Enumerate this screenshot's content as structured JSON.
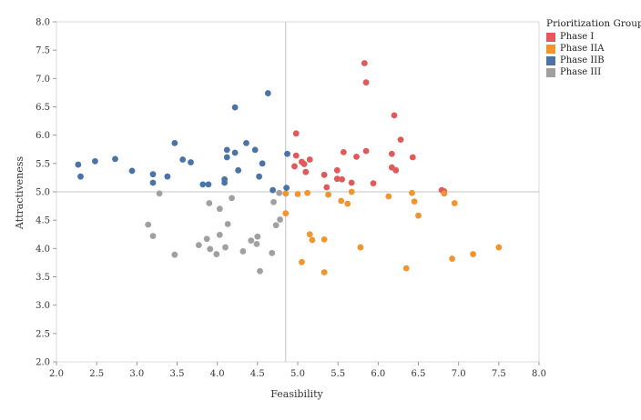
{
  "chart_data": {
    "type": "scatter",
    "title": "",
    "xlabel": "Feasibility",
    "ylabel": "Attractiveness",
    "xlim": [
      2.0,
      8.0
    ],
    "ylim": [
      2.0,
      8.0
    ],
    "xticks": [
      "2.0",
      "2.5",
      "3.0",
      "3.5",
      "4.0",
      "4.5",
      "5.0",
      "5.5",
      "6.0",
      "6.5",
      "7.0",
      "7.5",
      "8.0"
    ],
    "yticks": [
      "2.0",
      "2.5",
      "3.0",
      "3.5",
      "4.0",
      "4.5",
      "5.0",
      "5.5",
      "6.0",
      "6.5",
      "7.0",
      "7.5",
      "8.0"
    ],
    "reference_lines": {
      "x": 4.85,
      "y": 5.0
    },
    "grid": false,
    "legend": {
      "title": "Prioritization Group",
      "position": "top-right"
    },
    "series": [
      {
        "name": "Phase I",
        "color": "#e05a5b",
        "points": [
          [
            5.83,
            7.27
          ],
          [
            5.85,
            6.93
          ],
          [
            6.2,
            6.35
          ],
          [
            4.98,
            6.03
          ],
          [
            6.28,
            5.92
          ],
          [
            5.85,
            5.72
          ],
          [
            5.57,
            5.7
          ],
          [
            4.98,
            5.64
          ],
          [
            6.17,
            5.67
          ],
          [
            5.73,
            5.62
          ],
          [
            6.43,
            5.61
          ],
          [
            5.15,
            5.57
          ],
          [
            5.05,
            5.53
          ],
          [
            5.08,
            5.49
          ],
          [
            4.96,
            5.45
          ],
          [
            6.17,
            5.43
          ],
          [
            6.22,
            5.38
          ],
          [
            5.49,
            5.38
          ],
          [
            5.1,
            5.35
          ],
          [
            5.33,
            5.3
          ],
          [
            5.49,
            5.23
          ],
          [
            5.55,
            5.22
          ],
          [
            5.67,
            5.16
          ],
          [
            5.94,
            5.15
          ],
          [
            5.36,
            5.08
          ],
          [
            6.79,
            5.03
          ],
          [
            6.82,
            5.01
          ]
        ]
      },
      {
        "name": "Phase IIA",
        "color": "#f2952f",
        "points": [
          [
            4.85,
            4.97
          ],
          [
            5.0,
            4.96
          ],
          [
            5.12,
            4.98
          ],
          [
            5.38,
            4.95
          ],
          [
            5.67,
            5.0
          ],
          [
            6.13,
            4.92
          ],
          [
            6.42,
            4.98
          ],
          [
            6.45,
            4.83
          ],
          [
            5.54,
            4.84
          ],
          [
            5.62,
            4.79
          ],
          [
            6.82,
            4.97
          ],
          [
            6.95,
            4.8
          ],
          [
            4.85,
            4.62
          ],
          [
            6.5,
            4.58
          ],
          [
            5.15,
            4.25
          ],
          [
            5.18,
            4.15
          ],
          [
            5.33,
            4.16
          ],
          [
            5.78,
            4.02
          ],
          [
            7.5,
            4.02
          ],
          [
            7.18,
            3.9
          ],
          [
            6.92,
            3.82
          ],
          [
            5.05,
            3.76
          ],
          [
            6.35,
            3.65
          ],
          [
            5.33,
            3.58
          ]
        ]
      },
      {
        "name": "Phase IIB",
        "color": "#4a74a6",
        "points": [
          [
            4.63,
            6.74
          ],
          [
            4.22,
            6.49
          ],
          [
            3.47,
            5.86
          ],
          [
            4.36,
            5.86
          ],
          [
            4.12,
            5.74
          ],
          [
            4.47,
            5.74
          ],
          [
            4.22,
            5.69
          ],
          [
            4.87,
            5.67
          ],
          [
            4.12,
            5.61
          ],
          [
            2.73,
            5.58
          ],
          [
            3.57,
            5.57
          ],
          [
            2.48,
            5.54
          ],
          [
            3.67,
            5.52
          ],
          [
            2.27,
            5.48
          ],
          [
            4.56,
            5.5
          ],
          [
            2.94,
            5.37
          ],
          [
            4.26,
            5.38
          ],
          [
            3.2,
            5.31
          ],
          [
            3.38,
            5.27
          ],
          [
            2.3,
            5.27
          ],
          [
            4.52,
            5.27
          ],
          [
            4.09,
            5.22
          ],
          [
            3.2,
            5.16
          ],
          [
            4.09,
            5.16
          ],
          [
            3.82,
            5.13
          ],
          [
            3.89,
            5.13
          ],
          [
            4.86,
            5.07
          ],
          [
            4.69,
            5.03
          ]
        ]
      },
      {
        "name": "Phase III",
        "color": "#a0a0a0",
        "points": [
          [
            4.77,
            4.98
          ],
          [
            3.28,
            4.97
          ],
          [
            4.18,
            4.89
          ],
          [
            4.7,
            4.82
          ],
          [
            3.9,
            4.8
          ],
          [
            4.03,
            4.7
          ],
          [
            4.78,
            4.51
          ],
          [
            4.73,
            4.41
          ],
          [
            4.13,
            4.43
          ],
          [
            3.14,
            4.42
          ],
          [
            3.2,
            4.22
          ],
          [
            4.03,
            4.24
          ],
          [
            4.5,
            4.21
          ],
          [
            3.87,
            4.17
          ],
          [
            4.42,
            4.14
          ],
          [
            4.49,
            4.08
          ],
          [
            3.77,
            4.06
          ],
          [
            4.1,
            4.02
          ],
          [
            3.91,
            3.99
          ],
          [
            4.32,
            3.95
          ],
          [
            3.99,
            3.9
          ],
          [
            4.68,
            3.92
          ],
          [
            3.47,
            3.89
          ],
          [
            4.53,
            3.6
          ]
        ]
      }
    ]
  }
}
